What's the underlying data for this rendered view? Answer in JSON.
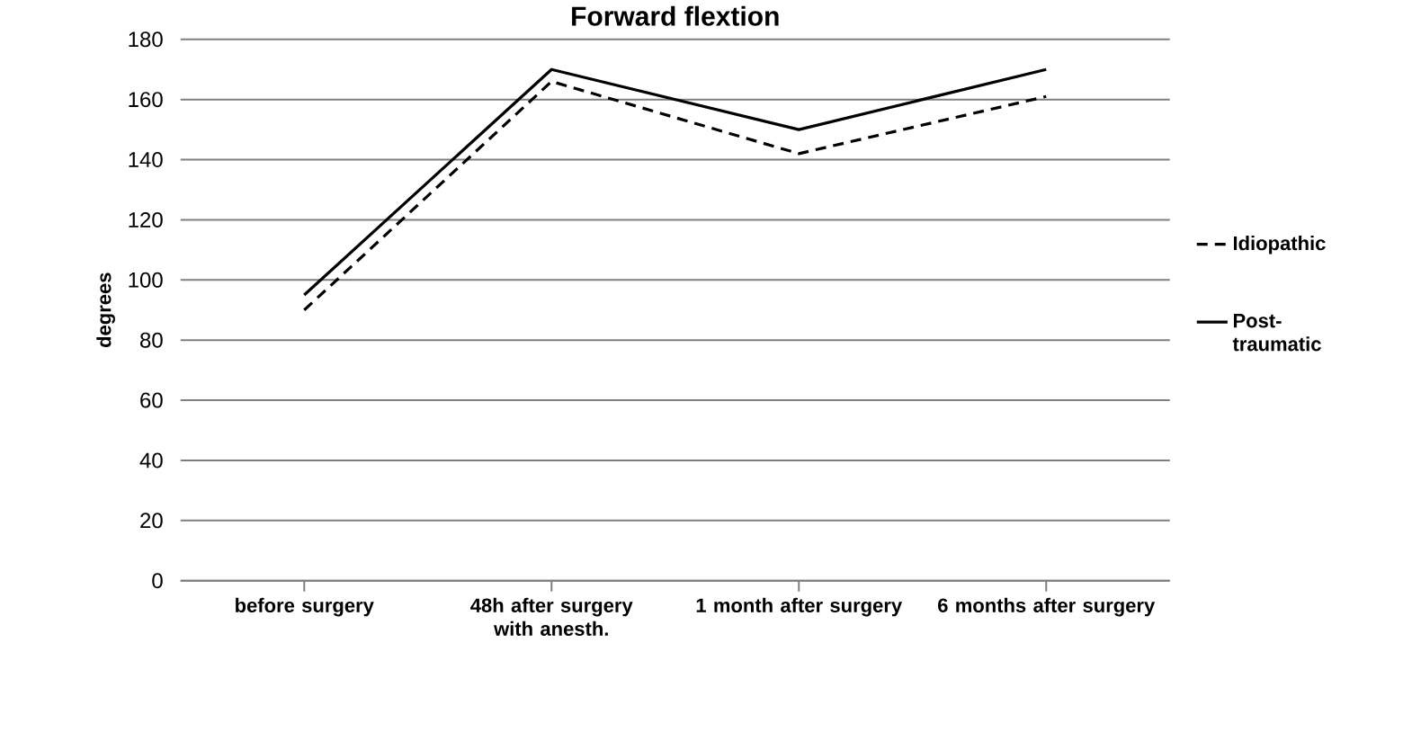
{
  "chart_data": {
    "type": "line",
    "title": "Forward flextion",
    "ylabel": "degrees",
    "categories": [
      "before surgery",
      "48h after surgery with anesth.",
      "1 month after surgery",
      "6 months after surgery"
    ],
    "series": [
      {
        "name": "Idiopathic",
        "color": "#000000",
        "line_style": "dashed",
        "values": [
          90,
          166,
          142,
          161
        ]
      },
      {
        "name": "Post-traumatic",
        "color": "#000000",
        "line_style": "solid",
        "values": [
          95,
          170,
          150,
          170
        ]
      }
    ],
    "ylim": [
      0,
      180
    ],
    "yticks": [
      0,
      20,
      40,
      60,
      80,
      100,
      120,
      140,
      160,
      180
    ],
    "grid": "y",
    "legend": "right",
    "marker": "none"
  }
}
